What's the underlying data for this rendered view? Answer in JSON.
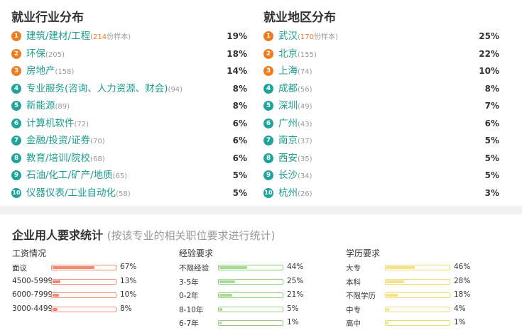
{
  "industry": {
    "title": "就业行业分布",
    "items": [
      {
        "rank": "1",
        "name": "建筑/建材/工程",
        "count": "(214份样本)",
        "count_num": "214",
        "count_suffix": "份样本)",
        "pct": "19%"
      },
      {
        "rank": "2",
        "name": "环保",
        "count": "(205)",
        "pct": "18%"
      },
      {
        "rank": "3",
        "name": "房地产",
        "count": "(158)",
        "pct": "14%"
      },
      {
        "rank": "4",
        "name": "专业服务(咨询、人力资源、财会)",
        "count": "(94)",
        "pct": "8%"
      },
      {
        "rank": "5",
        "name": "新能源",
        "count": "(89)",
        "pct": "8%"
      },
      {
        "rank": "6",
        "name": "计算机软件",
        "count": "(72)",
        "pct": "6%"
      },
      {
        "rank": "7",
        "name": "金融/投资/证券",
        "count": "(70)",
        "pct": "6%"
      },
      {
        "rank": "8",
        "name": "教育/培训/院校",
        "count": "(68)",
        "pct": "6%"
      },
      {
        "rank": "9",
        "name": "石油/化工/矿产/地质",
        "count": "(65)",
        "pct": "5%"
      },
      {
        "rank": "10",
        "name": "仪器仪表/工业自动化",
        "count": "(58)",
        "pct": "5%"
      }
    ]
  },
  "region": {
    "title": "就业地区分布",
    "items": [
      {
        "rank": "1",
        "name": "武汉",
        "count": "(170份样本)",
        "count_num": "170",
        "count_suffix": "份样本)",
        "pct": "25%"
      },
      {
        "rank": "2",
        "name": "北京",
        "count": "(155)",
        "pct": "22%"
      },
      {
        "rank": "3",
        "name": "上海",
        "count": "(74)",
        "pct": "10%"
      },
      {
        "rank": "4",
        "name": "成都",
        "count": "(56)",
        "pct": "8%"
      },
      {
        "rank": "5",
        "name": "深圳",
        "count": "(49)",
        "pct": "7%"
      },
      {
        "rank": "6",
        "name": "广州",
        "count": "(43)",
        "pct": "6%"
      },
      {
        "rank": "7",
        "name": "南京",
        "count": "(37)",
        "pct": "5%"
      },
      {
        "rank": "8",
        "name": "西安",
        "count": "(35)",
        "pct": "5%"
      },
      {
        "rank": "9",
        "name": "长沙",
        "count": "(34)",
        "pct": "5%"
      },
      {
        "rank": "10",
        "name": "杭州",
        "count": "(26)",
        "pct": "3%"
      }
    ]
  },
  "requirements": {
    "title": "企业用人要求统计",
    "subtitle": "(按该专业的相关职位要求进行统计)",
    "salary": {
      "heading": "工资情况",
      "items": [
        {
          "label": "面议",
          "pct": "67%",
          "value": 67
        },
        {
          "label": "4500-5999",
          "pct": "13%",
          "value": 13
        },
        {
          "label": "6000-7999",
          "pct": "10%",
          "value": 10
        },
        {
          "label": "3000-4499",
          "pct": "8%",
          "value": 8
        }
      ]
    },
    "experience": {
      "heading": "经验要求",
      "items": [
        {
          "label": "不限经验",
          "pct": "44%",
          "value": 44
        },
        {
          "label": "3-5年",
          "pct": "25%",
          "value": 25
        },
        {
          "label": "0-2年",
          "pct": "21%",
          "value": 21
        },
        {
          "label": "8-10年",
          "pct": "5%",
          "value": 5
        },
        {
          "label": "6-7年",
          "pct": "1%",
          "value": 1
        }
      ]
    },
    "education": {
      "heading": "学历要求",
      "items": [
        {
          "label": "大专",
          "pct": "46%",
          "value": 46
        },
        {
          "label": "本科",
          "pct": "28%",
          "value": 28
        },
        {
          "label": "不限学历",
          "pct": "18%",
          "value": 18
        },
        {
          "label": "中专",
          "pct": "4%",
          "value": 4
        },
        {
          "label": "高中",
          "pct": "1%",
          "value": 1
        }
      ]
    }
  }
}
